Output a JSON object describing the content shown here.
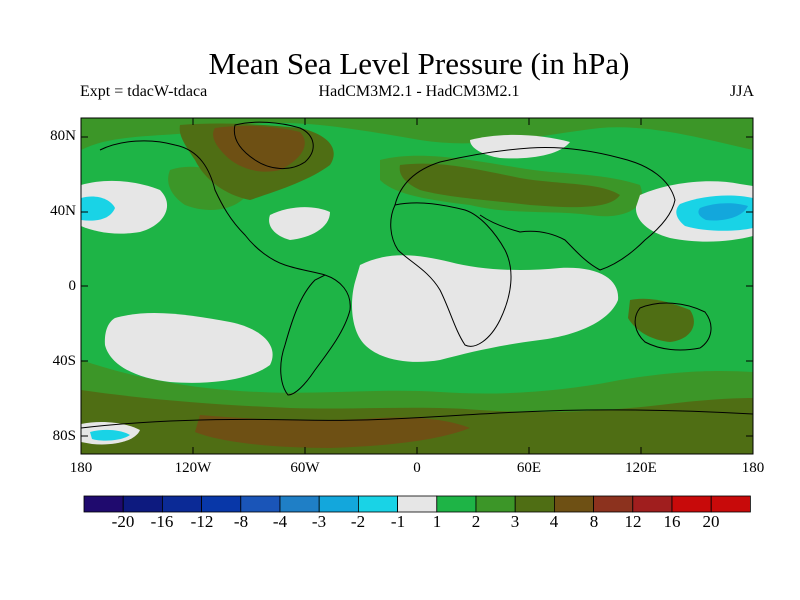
{
  "title": "Mean Sea Level Pressure (in hPa)",
  "expt_label": "Expt = tdacW-tdaca",
  "model_label": "HadCM3M2.1 - HadCM3M2.1",
  "season": "JJA",
  "lat_labels": [
    "80N",
    "40N",
    "0",
    "40S",
    "80S"
  ],
  "lon_labels": [
    "180",
    "120W",
    "60W",
    "0",
    "60E",
    "120E",
    "180"
  ],
  "colorbar": {
    "labels": [
      "-20",
      "-16",
      "-12",
      "-8",
      "-4",
      "-3",
      "-2",
      "-1",
      "1",
      "2",
      "3",
      "4",
      "8",
      "12",
      "16",
      "20"
    ],
    "colors": [
      "#1f0a6e",
      "#0d1a7f",
      "#0b2a96",
      "#0837a8",
      "#1a55b8",
      "#1f7fc6",
      "#13a7dc",
      "#19d3e6",
      "#e6e6e6",
      "#1eb446",
      "#3c9628",
      "#4f6e14",
      "#6e5014",
      "#8c321e",
      "#a01e1e",
      "#c80a0a"
    ]
  },
  "colors": {
    "ocean_base": "#1eb446",
    "near_zero": "#e6e6e6",
    "moderate": "#3c9628",
    "strong": "#4f6e14",
    "very_strong": "#6e5014",
    "neg_small": "#19d3e6",
    "neg_medium": "#13a7dc",
    "coastline": "#000000"
  }
}
